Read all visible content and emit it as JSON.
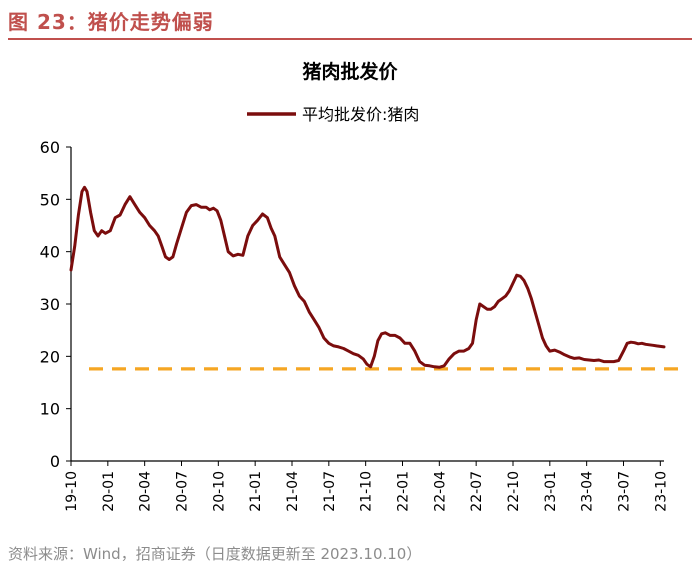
{
  "figure": {
    "caption": "图 23：猪价走势偏弱",
    "source": "资料来源：Wind，招商证券（日度数据更新至 2023.10.10）"
  },
  "colors": {
    "accent": "#c0504d",
    "series_line": "#7b0d0d",
    "reference_line": "#f5a623",
    "axis": "#000000",
    "footnote": "#8c8c8c"
  },
  "chart_data": {
    "type": "line",
    "title": "猪肉批发价",
    "xlabel": "",
    "ylabel": "",
    "ylim": [
      0,
      60
    ],
    "yticks": [
      0,
      10,
      20,
      30,
      40,
      50,
      60
    ],
    "x_range": [
      0,
      48.3
    ],
    "x_unit": "months since 2019-10",
    "xtick_labels": [
      "19-10",
      "20-01",
      "20-04",
      "20-07",
      "20-10",
      "21-01",
      "21-04",
      "21-07",
      "21-10",
      "22-01",
      "22-04",
      "22-07",
      "22-10",
      "23-01",
      "23-04",
      "23-07",
      "23-10"
    ],
    "xtick_positions": [
      0,
      3,
      6,
      9,
      12,
      15,
      18,
      21,
      24,
      27,
      30,
      33,
      36,
      39,
      42,
      45,
      48
    ],
    "legend": "top-center",
    "grid": false,
    "series": [
      {
        "name": "平均批发价:猪肉",
        "x": [
          0,
          0.3,
          0.6,
          0.9,
          1.1,
          1.3,
          1.6,
          1.9,
          2.2,
          2.5,
          2.8,
          3.2,
          3.6,
          4,
          4.4,
          4.8,
          5.2,
          5.6,
          6,
          6.4,
          6.8,
          7.1,
          7.4,
          7.7,
          8,
          8.3,
          8.6,
          9,
          9.4,
          9.8,
          10.2,
          10.6,
          11,
          11.3,
          11.6,
          11.9,
          12.2,
          12.5,
          12.8,
          13.2,
          13.6,
          14,
          14.4,
          14.8,
          15.2,
          15.6,
          16,
          16.3,
          16.6,
          17,
          17.4,
          17.8,
          18.2,
          18.6,
          19,
          19.4,
          19.8,
          20.2,
          20.6,
          21,
          21.4,
          21.8,
          22.2,
          22.6,
          23,
          23.4,
          23.8,
          24.1,
          24.4,
          24.7,
          25,
          25.3,
          25.6,
          26,
          26.4,
          26.8,
          27.2,
          27.6,
          28,
          28.4,
          28.8,
          29.2,
          29.6,
          30,
          30.4,
          30.8,
          31.2,
          31.6,
          32,
          32.4,
          32.7,
          33,
          33.3,
          33.6,
          33.9,
          34.2,
          34.5,
          34.8,
          35.1,
          35.4,
          35.7,
          36,
          36.3,
          36.6,
          36.9,
          37.2,
          37.5,
          37.8,
          38.1,
          38.4,
          38.7,
          39,
          39.4,
          39.8,
          40.2,
          40.6,
          41,
          41.4,
          41.8,
          42.2,
          42.6,
          43,
          43.4,
          43.8,
          44.2,
          44.6,
          45,
          45.3,
          45.6,
          45.9,
          46.2,
          46.5,
          46.8,
          47.1,
          47.4,
          47.7,
          48,
          48.3
        ],
        "values": [
          36.5,
          41,
          47,
          51.5,
          52.3,
          51.5,
          47.5,
          44,
          43,
          44,
          43.5,
          44,
          46.5,
          47,
          49,
          50.5,
          49,
          47.5,
          46.5,
          45,
          44,
          43,
          41,
          39,
          38.5,
          39,
          41.5,
          44.5,
          47.5,
          48.8,
          49,
          48.5,
          48.5,
          48,
          48.3,
          47.8,
          46,
          43,
          40,
          39.2,
          39.5,
          39.3,
          43,
          45,
          46,
          47.2,
          46.5,
          44.5,
          43,
          39,
          37.5,
          36,
          33.5,
          31.5,
          30.5,
          28.5,
          27,
          25.5,
          23.5,
          22.5,
          22,
          21.8,
          21.5,
          21,
          20.5,
          20.2,
          19.5,
          18.5,
          18,
          20,
          23,
          24.3,
          24.5,
          24,
          24,
          23.5,
          22.5,
          22.5,
          21,
          19,
          18.3,
          18.2,
          18,
          17.9,
          18.2,
          19.5,
          20.5,
          21,
          21,
          21.5,
          22.5,
          27,
          30,
          29.5,
          29,
          29,
          29.5,
          30.5,
          31,
          31.5,
          32.5,
          34,
          35.5,
          35.3,
          34.5,
          33,
          31,
          28.5,
          26,
          23.5,
          22,
          21,
          21.2,
          20.8,
          20.3,
          19.9,
          19.6,
          19.7,
          19.4,
          19.3,
          19.2,
          19.3,
          19,
          19,
          19,
          19.2,
          21,
          22.5,
          22.7,
          22.6,
          22.4,
          22.5,
          22.3,
          22.2,
          22.1,
          22,
          21.9,
          21.8
        ]
      }
    ],
    "reference_lines": [
      {
        "orientation": "horizontal",
        "y": 17.6,
        "style": "dashed"
      }
    ]
  }
}
